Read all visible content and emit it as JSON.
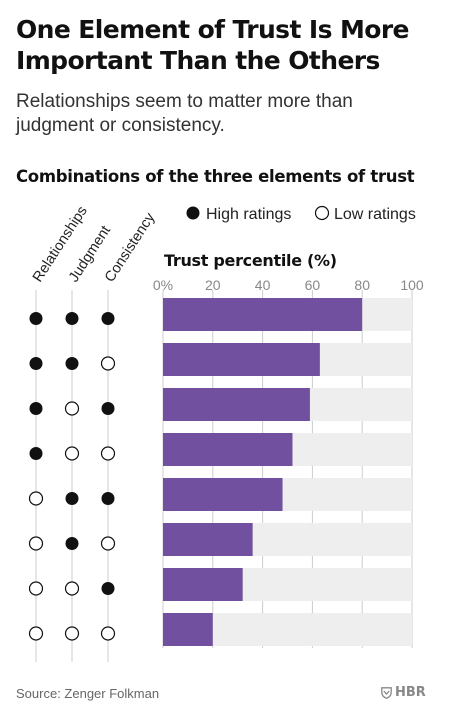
{
  "header": {
    "title": "One Element of Trust Is More Important Than the Others",
    "subtitle": "Relationships seem to matter more than judgment or consistency.",
    "section_title": "Combinations of the three elements of trust"
  },
  "footer": {
    "source": "Source: Zenger Folkman",
    "logo_text": "HBR",
    "logo_icon": "hbr-shield-icon"
  },
  "colors": {
    "bar": "#7150a0",
    "track": "#eeeeee",
    "dot": "#111111",
    "grid": "#cccccc"
  },
  "chart_data": {
    "type": "bar",
    "orientation": "horizontal",
    "title": "Trust percentile (%)",
    "xlim": [
      0,
      100
    ],
    "ticks": [
      "0%",
      "20",
      "40",
      "60",
      "80",
      "100"
    ],
    "legend": {
      "placement": "top",
      "high_label": "High ratings",
      "low_label": "Low ratings"
    },
    "matrix_columns": [
      "Relationships",
      "Judgment",
      "Consistency"
    ],
    "rows": [
      {
        "pattern": [
          "high",
          "high",
          "high"
        ],
        "value": 80
      },
      {
        "pattern": [
          "high",
          "high",
          "low"
        ],
        "value": 63
      },
      {
        "pattern": [
          "high",
          "low",
          "high"
        ],
        "value": 59
      },
      {
        "pattern": [
          "high",
          "low",
          "low"
        ],
        "value": 52
      },
      {
        "pattern": [
          "low",
          "high",
          "high"
        ],
        "value": 48
      },
      {
        "pattern": [
          "low",
          "high",
          "low"
        ],
        "value": 36
      },
      {
        "pattern": [
          "low",
          "low",
          "high"
        ],
        "value": 32
      },
      {
        "pattern": [
          "low",
          "low",
          "low"
        ],
        "value": 20
      }
    ]
  }
}
